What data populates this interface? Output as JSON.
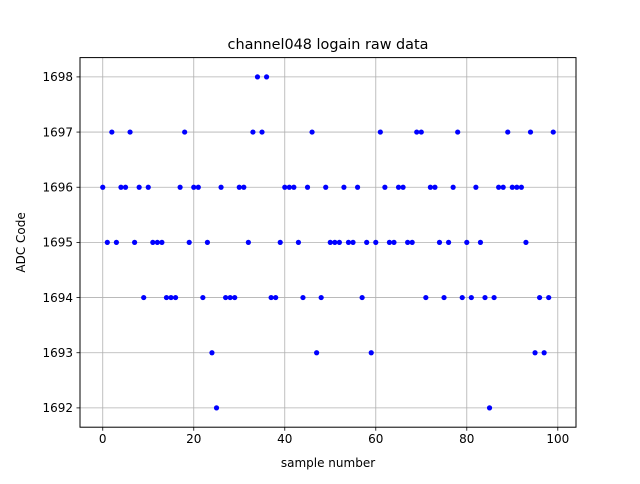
{
  "chart_data": {
    "type": "scatter",
    "title": "channel048 logain raw data",
    "xlabel": "sample number",
    "ylabel": "ADC Code",
    "xlim": [
      -5,
      104
    ],
    "ylim": [
      1691.65,
      1698.35
    ],
    "xticks": [
      0,
      20,
      40,
      60,
      80,
      100
    ],
    "yticks": [
      1692,
      1693,
      1694,
      1695,
      1696,
      1697,
      1698
    ],
    "grid": true,
    "marker_color": "#0000ff",
    "series": [
      {
        "x": [
          0,
          1,
          2,
          3,
          4,
          5,
          6,
          7,
          8,
          9,
          10,
          11,
          12,
          13,
          14,
          15,
          16,
          17,
          18,
          19,
          20,
          21,
          22,
          23,
          24,
          25,
          26,
          27,
          28,
          29,
          30,
          31,
          32,
          33,
          34,
          35,
          36,
          37,
          38,
          39,
          40,
          41,
          42,
          43,
          44,
          45,
          46,
          47,
          48,
          49,
          50,
          51,
          52,
          53,
          54,
          55,
          56,
          57,
          58,
          59,
          60,
          61,
          62,
          63,
          64,
          65,
          66,
          67,
          68,
          69,
          70,
          71,
          72,
          73,
          74,
          75,
          76,
          77,
          78,
          79,
          80,
          81,
          82,
          83,
          84,
          85,
          86,
          87,
          88,
          89,
          90,
          91,
          92,
          93,
          94,
          95,
          96,
          97,
          98,
          99
        ],
        "y": [
          1696,
          1695,
          1697,
          1695,
          1696,
          1696,
          1697,
          1695,
          1696,
          1694,
          1696,
          1695,
          1695,
          1695,
          1694,
          1694,
          1694,
          1696,
          1697,
          1695,
          1696,
          1696,
          1694,
          1695,
          1693,
          1692,
          1696,
          1694,
          1694,
          1694,
          1696,
          1696,
          1695,
          1697,
          1698,
          1697,
          1698,
          1694,
          1694,
          1695,
          1696,
          1696,
          1696,
          1695,
          1694,
          1696,
          1697,
          1693,
          1694,
          1696,
          1695,
          1695,
          1695,
          1696,
          1695,
          1695,
          1696,
          1694,
          1695,
          1693,
          1695,
          1697,
          1696,
          1695,
          1695,
          1696,
          1696,
          1695,
          1695,
          1697,
          1697,
          1694,
          1696,
          1696,
          1695,
          1694,
          1695,
          1696,
          1697,
          1694,
          1695,
          1694,
          1696,
          1695,
          1694,
          1692,
          1694,
          1696,
          1696,
          1697,
          1696,
          1696,
          1696,
          1695,
          1697,
          1693,
          1694,
          1693,
          1694,
          1697
        ]
      }
    ]
  }
}
